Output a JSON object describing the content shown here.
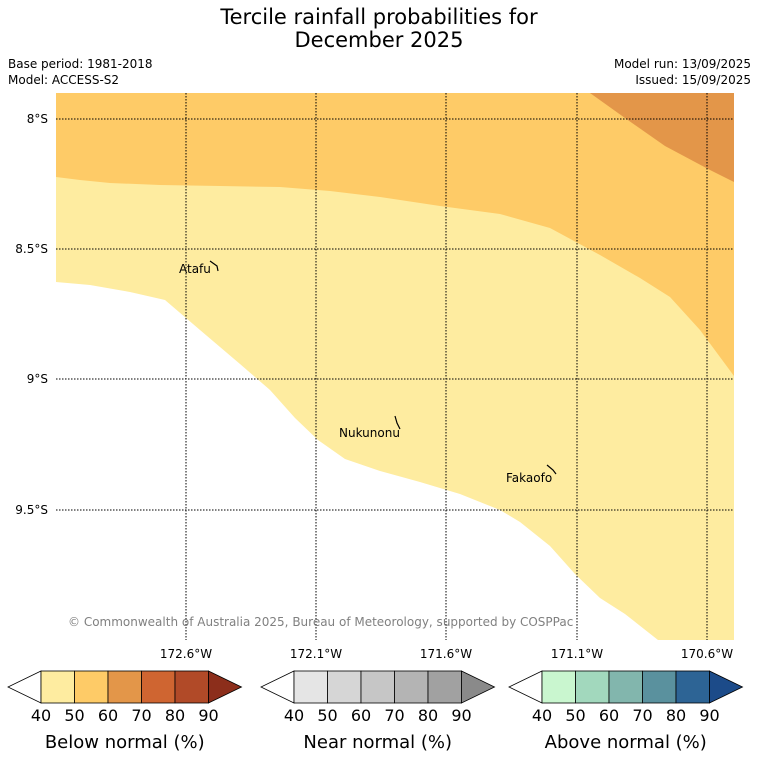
{
  "title_line1": "Tercile rainfall probabilities for",
  "title_line2": "December 2025",
  "meta": {
    "base_period": "Base period: 1981-2018",
    "model": "Model: ACCESS-S2",
    "model_run": "Model run: 13/09/2025",
    "issued": "Issued: 15/09/2025"
  },
  "map": {
    "lat_labels": [
      "8°S",
      "8.5°S",
      "9°S",
      "9.5°S"
    ],
    "lon_labels": [
      "172.6°W",
      "172.1°W",
      "171.6°W",
      "171.1°W",
      "170.6°W"
    ],
    "places": [
      "Atafu",
      "Nukunonu",
      "Fakaofo"
    ],
    "copyright": "© Commonwealth of Australia 2025, Bureau of Meteorology, supported by COSPPac",
    "colors": {
      "below_50": "#fecb67",
      "below_40": "#feeca0",
      "below_60": "#e39649"
    }
  },
  "colorbars": [
    {
      "title": "Below normal (%)",
      "ticks": [
        "40",
        "50",
        "60",
        "70",
        "80",
        "90"
      ],
      "colors": [
        "#feeca0",
        "#fecb67",
        "#e39649",
        "#cf6531",
        "#b14a28",
        "#8c2e1b"
      ]
    },
    {
      "title": "Near normal (%)",
      "ticks": [
        "40",
        "50",
        "60",
        "70",
        "80",
        "90"
      ],
      "colors": [
        "#e5e5e5",
        "#d6d6d6",
        "#c6c6c6",
        "#b4b4b4",
        "#a1a1a1",
        "#8a8a8a"
      ]
    },
    {
      "title": "Above normal (%)",
      "ticks": [
        "40",
        "50",
        "60",
        "70",
        "80",
        "90"
      ],
      "colors": [
        "#c9f6cf",
        "#a2d8bd",
        "#82b6ad",
        "#5a919e",
        "#2d6495",
        "#1c4b89"
      ]
    }
  ]
}
